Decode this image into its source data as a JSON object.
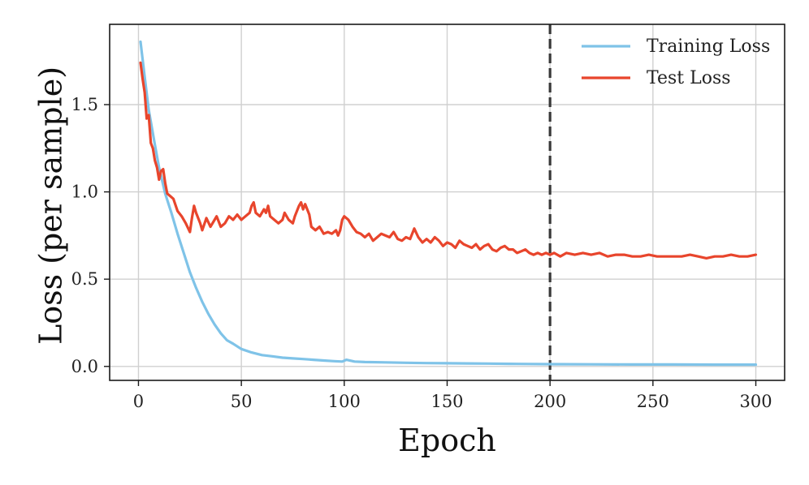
{
  "chart_data": {
    "type": "line",
    "xlabel": "Epoch",
    "ylabel": "Loss (per sample)",
    "xlim": [
      -14,
      314
    ],
    "ylim": [
      -0.08,
      1.96
    ],
    "x_ticks": [
      0,
      50,
      100,
      150,
      200,
      250,
      300
    ],
    "y_ticks": [
      0.0,
      0.5,
      1.0,
      1.5
    ],
    "x_tick_labels": [
      "0",
      "50",
      "100",
      "150",
      "200",
      "250",
      "300"
    ],
    "y_tick_labels": [
      "0.0",
      "0.5",
      "1.0",
      "1.5"
    ],
    "grid": true,
    "legend_position": "top-right",
    "vertical_line": {
      "x": 200,
      "style": "dashed",
      "color": "#3a3a3a"
    },
    "series": [
      {
        "name": "Training Loss",
        "color": "#7fc3e8",
        "points": [
          [
            1,
            1.86
          ],
          [
            3,
            1.66
          ],
          [
            5,
            1.47
          ],
          [
            8,
            1.27
          ],
          [
            10,
            1.14
          ],
          [
            13,
            0.99
          ],
          [
            16,
            0.88
          ],
          [
            19,
            0.76
          ],
          [
            22,
            0.65
          ],
          [
            25,
            0.54
          ],
          [
            28,
            0.45
          ],
          [
            31,
            0.37
          ],
          [
            34,
            0.3
          ],
          [
            37,
            0.24
          ],
          [
            40,
            0.19
          ],
          [
            43,
            0.15
          ],
          [
            46,
            0.13
          ],
          [
            50,
            0.1
          ],
          [
            55,
            0.08
          ],
          [
            60,
            0.065
          ],
          [
            65,
            0.058
          ],
          [
            70,
            0.05
          ],
          [
            75,
            0.046
          ],
          [
            80,
            0.042
          ],
          [
            85,
            0.038
          ],
          [
            90,
            0.034
          ],
          [
            95,
            0.03
          ],
          [
            99,
            0.028
          ],
          [
            101,
            0.038
          ],
          [
            105,
            0.028
          ],
          [
            110,
            0.025
          ],
          [
            120,
            0.023
          ],
          [
            130,
            0.021
          ],
          [
            140,
            0.019
          ],
          [
            150,
            0.018
          ],
          [
            160,
            0.017
          ],
          [
            170,
            0.016
          ],
          [
            180,
            0.015
          ],
          [
            190,
            0.014
          ],
          [
            200,
            0.013
          ],
          [
            220,
            0.012
          ],
          [
            240,
            0.011
          ],
          [
            260,
            0.011
          ],
          [
            280,
            0.01
          ],
          [
            300,
            0.01
          ]
        ]
      },
      {
        "name": "Test Loss",
        "color": "#e8452c",
        "points": [
          [
            1,
            1.74
          ],
          [
            2,
            1.65
          ],
          [
            3,
            1.57
          ],
          [
            4,
            1.42
          ],
          [
            5,
            1.44
          ],
          [
            6,
            1.28
          ],
          [
            7,
            1.25
          ],
          [
            8,
            1.18
          ],
          [
            9,
            1.14
          ],
          [
            10,
            1.07
          ],
          [
            11,
            1.12
          ],
          [
            12,
            1.13
          ],
          [
            13,
            1.05
          ],
          [
            14,
            0.99
          ],
          [
            15,
            0.98
          ],
          [
            17,
            0.96
          ],
          [
            19,
            0.89
          ],
          [
            21,
            0.86
          ],
          [
            23,
            0.82
          ],
          [
            25,
            0.77
          ],
          [
            26,
            0.85
          ],
          [
            27,
            0.92
          ],
          [
            28,
            0.88
          ],
          [
            30,
            0.82
          ],
          [
            31,
            0.78
          ],
          [
            33,
            0.85
          ],
          [
            35,
            0.8
          ],
          [
            37,
            0.84
          ],
          [
            38,
            0.86
          ],
          [
            40,
            0.8
          ],
          [
            42,
            0.82
          ],
          [
            44,
            0.86
          ],
          [
            46,
            0.84
          ],
          [
            48,
            0.87
          ],
          [
            50,
            0.84
          ],
          [
            52,
            0.86
          ],
          [
            54,
            0.88
          ],
          [
            55,
            0.92
          ],
          [
            56,
            0.94
          ],
          [
            57,
            0.88
          ],
          [
            59,
            0.86
          ],
          [
            61,
            0.9
          ],
          [
            62,
            0.88
          ],
          [
            63,
            0.92
          ],
          [
            64,
            0.86
          ],
          [
            66,
            0.84
          ],
          [
            68,
            0.82
          ],
          [
            70,
            0.84
          ],
          [
            71,
            0.88
          ],
          [
            73,
            0.84
          ],
          [
            75,
            0.82
          ],
          [
            76,
            0.86
          ],
          [
            78,
            0.92
          ],
          [
            79,
            0.94
          ],
          [
            80,
            0.9
          ],
          [
            81,
            0.93
          ],
          [
            83,
            0.87
          ],
          [
            84,
            0.8
          ],
          [
            86,
            0.78
          ],
          [
            88,
            0.8
          ],
          [
            90,
            0.76
          ],
          [
            92,
            0.77
          ],
          [
            94,
            0.76
          ],
          [
            96,
            0.78
          ],
          [
            97,
            0.75
          ],
          [
            98,
            0.78
          ],
          [
            99,
            0.84
          ],
          [
            100,
            0.86
          ],
          [
            102,
            0.84
          ],
          [
            104,
            0.8
          ],
          [
            106,
            0.77
          ],
          [
            108,
            0.76
          ],
          [
            110,
            0.74
          ],
          [
            112,
            0.76
          ],
          [
            114,
            0.72
          ],
          [
            116,
            0.74
          ],
          [
            118,
            0.76
          ],
          [
            120,
            0.75
          ],
          [
            122,
            0.74
          ],
          [
            124,
            0.77
          ],
          [
            126,
            0.73
          ],
          [
            128,
            0.72
          ],
          [
            130,
            0.74
          ],
          [
            132,
            0.73
          ],
          [
            134,
            0.79
          ],
          [
            136,
            0.74
          ],
          [
            138,
            0.71
          ],
          [
            140,
            0.73
          ],
          [
            142,
            0.71
          ],
          [
            144,
            0.74
          ],
          [
            146,
            0.72
          ],
          [
            148,
            0.69
          ],
          [
            150,
            0.71
          ],
          [
            152,
            0.7
          ],
          [
            154,
            0.68
          ],
          [
            156,
            0.72
          ],
          [
            158,
            0.7
          ],
          [
            160,
            0.69
          ],
          [
            162,
            0.68
          ],
          [
            164,
            0.7
          ],
          [
            166,
            0.67
          ],
          [
            168,
            0.69
          ],
          [
            170,
            0.7
          ],
          [
            172,
            0.67
          ],
          [
            174,
            0.66
          ],
          [
            176,
            0.68
          ],
          [
            178,
            0.69
          ],
          [
            180,
            0.67
          ],
          [
            182,
            0.67
          ],
          [
            184,
            0.65
          ],
          [
            186,
            0.66
          ],
          [
            188,
            0.67
          ],
          [
            190,
            0.65
          ],
          [
            192,
            0.64
          ],
          [
            194,
            0.65
          ],
          [
            196,
            0.64
          ],
          [
            198,
            0.65
          ],
          [
            200,
            0.64
          ],
          [
            202,
            0.65
          ],
          [
            205,
            0.63
          ],
          [
            208,
            0.65
          ],
          [
            212,
            0.64
          ],
          [
            216,
            0.65
          ],
          [
            220,
            0.64
          ],
          [
            224,
            0.65
          ],
          [
            228,
            0.63
          ],
          [
            232,
            0.64
          ],
          [
            236,
            0.64
          ],
          [
            240,
            0.63
          ],
          [
            244,
            0.63
          ],
          [
            248,
            0.64
          ],
          [
            252,
            0.63
          ],
          [
            256,
            0.63
          ],
          [
            260,
            0.63
          ],
          [
            264,
            0.63
          ],
          [
            268,
            0.64
          ],
          [
            272,
            0.63
          ],
          [
            276,
            0.62
          ],
          [
            280,
            0.63
          ],
          [
            284,
            0.63
          ],
          [
            288,
            0.64
          ],
          [
            292,
            0.63
          ],
          [
            296,
            0.63
          ],
          [
            300,
            0.64
          ]
        ]
      }
    ]
  }
}
